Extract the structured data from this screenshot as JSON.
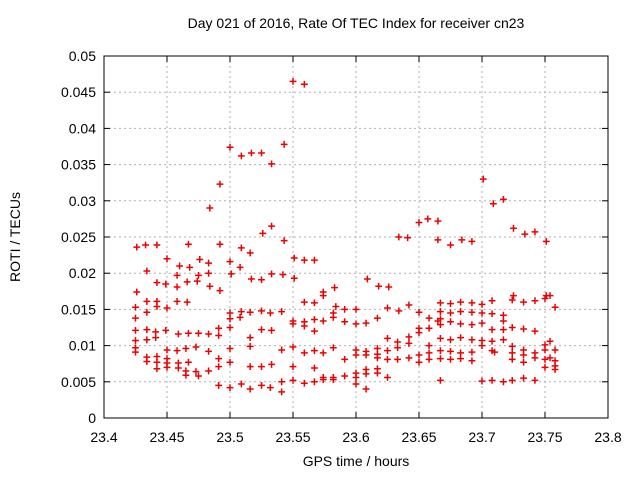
{
  "chart_data": {
    "type": "scatter",
    "title": "Day 021 of 2016, Rate Of TEC Index for receiver cn23",
    "xlabel": "GPS time / hours",
    "ylabel": "ROTI / TECUs",
    "xlim": [
      23.4,
      23.8
    ],
    "ylim": [
      0,
      0.05
    ],
    "grid": true,
    "legend": "none",
    "marker": "plus",
    "marker_color": "#ee0000",
    "grid_color": "#b0b0b0",
    "border_color": "#000000",
    "xticks": [
      23.4,
      23.45,
      23.5,
      23.55,
      23.6,
      23.65,
      23.7,
      23.75,
      23.8
    ],
    "xtick_labels": [
      "23.4",
      "23.45",
      "23.5",
      "23.55",
      "23.6",
      "23.65",
      "23.7",
      "23.75",
      "23.8"
    ],
    "yticks": [
      0,
      0.005,
      0.01,
      0.015,
      0.02,
      0.025,
      0.03,
      0.035,
      0.04,
      0.045,
      0.05
    ],
    "ytick_labels": [
      "0",
      "0.005",
      "0.01",
      "0.015",
      "0.02",
      "0.025",
      "0.03",
      "0.035",
      "0.04",
      "0.045",
      "0.05"
    ],
    "series": [
      {
        "name": "ROTI",
        "points": [
          [
            23.5,
            0.0374
          ],
          [
            23.509,
            0.0362
          ],
          [
            23.517,
            0.0366
          ],
          [
            23.525,
            0.0366
          ],
          [
            23.533,
            0.0351
          ],
          [
            23.543,
            0.0378
          ],
          [
            23.55,
            0.0465
          ],
          [
            23.559,
            0.0461
          ],
          [
            23.701,
            0.033
          ],
          [
            23.492,
            0.0323
          ],
          [
            23.484,
            0.029
          ],
          [
            23.526,
            0.0255
          ],
          [
            23.533,
            0.0265
          ],
          [
            23.543,
            0.0245
          ],
          [
            23.634,
            0.025
          ],
          [
            23.641,
            0.0249
          ],
          [
            23.65,
            0.027
          ],
          [
            23.657,
            0.0275
          ],
          [
            23.665,
            0.0272
          ],
          [
            23.665,
            0.0246
          ],
          [
            23.675,
            0.0239
          ],
          [
            23.684,
            0.0246
          ],
          [
            23.692,
            0.0244
          ],
          [
            23.709,
            0.0296
          ],
          [
            23.717,
            0.0302
          ],
          [
            23.725,
            0.0262
          ],
          [
            23.734,
            0.0254
          ],
          [
            23.742,
            0.0257
          ],
          [
            23.751,
            0.0244
          ],
          [
            23.426,
            0.0236
          ],
          [
            23.433,
            0.0239
          ],
          [
            23.442,
            0.0239
          ],
          [
            23.467,
            0.024
          ],
          [
            23.492,
            0.024
          ],
          [
            23.509,
            0.0235
          ],
          [
            23.516,
            0.0228
          ],
          [
            23.45,
            0.022
          ],
          [
            23.476,
            0.0219
          ],
          [
            23.483,
            0.0214
          ],
          [
            23.5,
            0.0216
          ],
          [
            23.508,
            0.0208
          ],
          [
            23.46,
            0.021
          ],
          [
            23.468,
            0.0208
          ],
          [
            23.434,
            0.0203
          ],
          [
            23.551,
            0.0221
          ],
          [
            23.559,
            0.0218
          ],
          [
            23.567,
            0.0218
          ],
          [
            23.458,
            0.0197
          ],
          [
            23.475,
            0.0197
          ],
          [
            23.483,
            0.02
          ],
          [
            23.501,
            0.0199
          ],
          [
            23.517,
            0.0192
          ],
          [
            23.525,
            0.0191
          ],
          [
            23.533,
            0.0199
          ],
          [
            23.542,
            0.0198
          ],
          [
            23.551,
            0.0193
          ],
          [
            23.442,
            0.0187
          ],
          [
            23.449,
            0.0185
          ],
          [
            23.458,
            0.0181
          ],
          [
            23.466,
            0.0188
          ],
          [
            23.474,
            0.0189
          ],
          [
            23.484,
            0.0182
          ],
          [
            23.492,
            0.0176
          ],
          [
            23.426,
            0.0174
          ],
          [
            23.574,
            0.0174
          ],
          [
            23.574,
            0.0169
          ],
          [
            23.583,
            0.018
          ],
          [
            23.609,
            0.0192
          ],
          [
            23.618,
            0.0182
          ],
          [
            23.626,
            0.0181
          ],
          [
            23.725,
            0.0169
          ],
          [
            23.751,
            0.0169
          ],
          [
            23.754,
            0.0169
          ],
          [
            23.434,
            0.0161
          ],
          [
            23.442,
            0.0161
          ],
          [
            23.458,
            0.0161
          ],
          [
            23.466,
            0.016
          ],
          [
            23.425,
            0.0153
          ],
          [
            23.434,
            0.0146
          ],
          [
            23.442,
            0.0154
          ],
          [
            23.45,
            0.0152
          ],
          [
            23.5,
            0.0145
          ],
          [
            23.509,
            0.0147
          ],
          [
            23.508,
            0.0139
          ],
          [
            23.516,
            0.0146
          ],
          [
            23.525,
            0.0148
          ],
          [
            23.532,
            0.0145
          ],
          [
            23.559,
            0.016
          ],
          [
            23.567,
            0.0159
          ],
          [
            23.584,
            0.0154
          ],
          [
            23.591,
            0.015
          ],
          [
            23.6,
            0.015
          ],
          [
            23.625,
            0.0152
          ],
          [
            23.634,
            0.0148
          ],
          [
            23.642,
            0.0156
          ],
          [
            23.65,
            0.0146
          ],
          [
            23.667,
            0.0159
          ],
          [
            23.675,
            0.0158
          ],
          [
            23.683,
            0.016
          ],
          [
            23.692,
            0.0159
          ],
          [
            23.7,
            0.0157
          ],
          [
            23.708,
            0.0162
          ],
          [
            23.724,
            0.0163
          ],
          [
            23.733,
            0.016
          ],
          [
            23.742,
            0.0162
          ],
          [
            23.75,
            0.0165
          ],
          [
            23.758,
            0.0153
          ],
          [
            23.425,
            0.0138
          ],
          [
            23.5,
            0.0137
          ],
          [
            23.541,
            0.0147
          ],
          [
            23.658,
            0.0138
          ],
          [
            23.665,
            0.0134
          ],
          [
            23.425,
            0.0121
          ],
          [
            23.434,
            0.0122
          ],
          [
            23.441,
            0.0119
          ],
          [
            23.449,
            0.0121
          ],
          [
            23.491,
            0.0124
          ],
          [
            23.5,
            0.0125
          ],
          [
            23.525,
            0.0122
          ],
          [
            23.55,
            0.0134
          ],
          [
            23.55,
            0.013
          ],
          [
            23.559,
            0.0133
          ],
          [
            23.559,
            0.0127
          ],
          [
            23.567,
            0.0136
          ],
          [
            23.567,
            0.012
          ],
          [
            23.574,
            0.0134
          ],
          [
            23.582,
            0.0145
          ],
          [
            23.582,
            0.0139
          ],
          [
            23.591,
            0.0133
          ],
          [
            23.6,
            0.013
          ],
          [
            23.608,
            0.0131
          ],
          [
            23.617,
            0.0138
          ],
          [
            23.65,
            0.0124
          ],
          [
            23.65,
            0.0118
          ],
          [
            23.658,
            0.0124
          ],
          [
            23.667,
            0.0147
          ],
          [
            23.667,
            0.0137
          ],
          [
            23.675,
            0.0145
          ],
          [
            23.683,
            0.0147
          ],
          [
            23.692,
            0.0146
          ],
          [
            23.7,
            0.0145
          ],
          [
            23.708,
            0.0144
          ],
          [
            23.717,
            0.0142
          ],
          [
            23.717,
            0.0134
          ],
          [
            23.724,
            0.0125
          ],
          [
            23.733,
            0.0123
          ],
          [
            23.742,
            0.012
          ],
          [
            23.667,
            0.0129
          ],
          [
            23.675,
            0.0133
          ],
          [
            23.683,
            0.013
          ],
          [
            23.692,
            0.0129
          ],
          [
            23.7,
            0.0131
          ],
          [
            23.708,
            0.0122
          ],
          [
            23.717,
            0.0122
          ],
          [
            23.533,
            0.0121
          ],
          [
            23.459,
            0.0116
          ],
          [
            23.467,
            0.0117
          ],
          [
            23.475,
            0.0117
          ],
          [
            23.483,
            0.0116
          ],
          [
            23.425,
            0.0107
          ],
          [
            23.434,
            0.0108
          ],
          [
            23.441,
            0.0111
          ],
          [
            23.491,
            0.0114
          ],
          [
            23.516,
            0.0111
          ],
          [
            23.625,
            0.011
          ],
          [
            23.642,
            0.0112
          ],
          [
            23.667,
            0.011
          ],
          [
            23.675,
            0.0108
          ],
          [
            23.683,
            0.0111
          ],
          [
            23.692,
            0.0108
          ],
          [
            23.7,
            0.0107
          ],
          [
            23.708,
            0.0106
          ],
          [
            23.717,
            0.0108
          ],
          [
            23.754,
            0.0106
          ],
          [
            23.633,
            0.0105
          ],
          [
            23.425,
            0.0097
          ],
          [
            23.425,
            0.0091
          ],
          [
            23.45,
            0.0094
          ],
          [
            23.458,
            0.0093
          ],
          [
            23.465,
            0.0096
          ],
          [
            23.473,
            0.0098
          ],
          [
            23.483,
            0.0092
          ],
          [
            23.5,
            0.0096
          ],
          [
            23.516,
            0.0099
          ],
          [
            23.541,
            0.0094
          ],
          [
            23.55,
            0.0098
          ],
          [
            23.559,
            0.009
          ],
          [
            23.567,
            0.0093
          ],
          [
            23.574,
            0.009
          ],
          [
            23.582,
            0.0097
          ],
          [
            23.6,
            0.0094
          ],
          [
            23.608,
            0.0092
          ],
          [
            23.617,
            0.0096
          ],
          [
            23.625,
            0.0093
          ],
          [
            23.633,
            0.0097
          ],
          [
            23.642,
            0.0103
          ],
          [
            23.658,
            0.01
          ],
          [
            23.7,
            0.01
          ],
          [
            23.75,
            0.0101
          ],
          [
            23.667,
            0.0093
          ],
          [
            23.675,
            0.0092
          ],
          [
            23.683,
            0.009
          ],
          [
            23.692,
            0.0091
          ],
          [
            23.71,
            0.0091
          ],
          [
            23.724,
            0.0099
          ],
          [
            23.724,
            0.009
          ],
          [
            23.733,
            0.0094
          ],
          [
            23.742,
            0.009
          ],
          [
            23.75,
            0.0094
          ],
          [
            23.758,
            0.0094
          ],
          [
            23.708,
            0.0093
          ],
          [
            23.434,
            0.0084
          ],
          [
            23.442,
            0.0085
          ],
          [
            23.45,
            0.0082
          ],
          [
            23.434,
            0.0078
          ],
          [
            23.442,
            0.0077
          ],
          [
            23.45,
            0.0076
          ],
          [
            23.459,
            0.0076
          ],
          [
            23.467,
            0.0077
          ],
          [
            23.491,
            0.0082
          ],
          [
            23.5,
            0.0077
          ],
          [
            23.591,
            0.0081
          ],
          [
            23.6,
            0.0087
          ],
          [
            23.608,
            0.0087
          ],
          [
            23.617,
            0.0088
          ],
          [
            23.617,
            0.0083
          ],
          [
            23.625,
            0.0081
          ],
          [
            23.633,
            0.0081
          ],
          [
            23.642,
            0.0083
          ],
          [
            23.65,
            0.0087
          ],
          [
            23.65,
            0.0077
          ],
          [
            23.658,
            0.009
          ],
          [
            23.658,
            0.0081
          ],
          [
            23.667,
            0.0082
          ],
          [
            23.675,
            0.0081
          ],
          [
            23.683,
            0.0082
          ],
          [
            23.692,
            0.0079
          ],
          [
            23.724,
            0.0081
          ],
          [
            23.733,
            0.0087
          ],
          [
            23.733,
            0.0077
          ],
          [
            23.742,
            0.0083
          ],
          [
            23.75,
            0.0081
          ],
          [
            23.754,
            0.0083
          ],
          [
            23.758,
            0.0079
          ],
          [
            23.442,
            0.0068
          ],
          [
            23.45,
            0.007
          ],
          [
            23.459,
            0.0069
          ],
          [
            23.465,
            0.0065
          ],
          [
            23.473,
            0.0064
          ],
          [
            23.483,
            0.0065
          ],
          [
            23.491,
            0.0071
          ],
          [
            23.516,
            0.0071
          ],
          [
            23.525,
            0.0071
          ],
          [
            23.533,
            0.0074
          ],
          [
            23.55,
            0.0071
          ],
          [
            23.567,
            0.0069
          ],
          [
            23.6,
            0.0062
          ],
          [
            23.608,
            0.0067
          ],
          [
            23.608,
            0.0061
          ],
          [
            23.617,
            0.0068
          ],
          [
            23.617,
            0.0062
          ],
          [
            23.75,
            0.007
          ],
          [
            23.758,
            0.0072
          ],
          [
            23.758,
            0.0067
          ],
          [
            23.465,
            0.0059
          ],
          [
            23.475,
            0.0058
          ],
          [
            23.574,
            0.0056
          ],
          [
            23.582,
            0.0056
          ],
          [
            23.591,
            0.0058
          ],
          [
            23.6,
            0.0056
          ],
          [
            23.625,
            0.0056
          ],
          [
            23.541,
            0.005
          ],
          [
            23.55,
            0.0052
          ],
          [
            23.559,
            0.0048
          ],
          [
            23.567,
            0.005
          ],
          [
            23.574,
            0.0053
          ],
          [
            23.582,
            0.0053
          ],
          [
            23.667,
            0.0052
          ],
          [
            23.7,
            0.0051
          ],
          [
            23.708,
            0.0052
          ],
          [
            23.717,
            0.005
          ],
          [
            23.724,
            0.0052
          ],
          [
            23.733,
            0.0055
          ],
          [
            23.742,
            0.0052
          ],
          [
            23.491,
            0.0045
          ],
          [
            23.5,
            0.0042
          ],
          [
            23.509,
            0.0047
          ],
          [
            23.516,
            0.004
          ],
          [
            23.525,
            0.0045
          ],
          [
            23.532,
            0.0042
          ],
          [
            23.6,
            0.0047
          ],
          [
            23.608,
            0.004
          ],
          [
            23.541,
            0.0036
          ]
        ]
      }
    ]
  }
}
